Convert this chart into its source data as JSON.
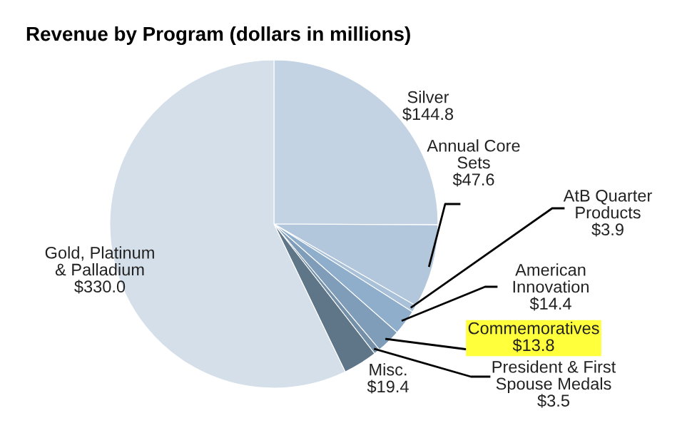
{
  "chart_data": {
    "type": "pie",
    "title": "Revenue by Program (dollars in millions)",
    "categories": [
      "Silver",
      "Annual Core Sets",
      "AtB Quarter Products",
      "American Innovation",
      "Commemoratives",
      "President & First Spouse Medals",
      "Misc.",
      "Gold, Platinum & Palladium"
    ],
    "values": [
      144.8,
      47.6,
      3.9,
      14.4,
      13.8,
      3.5,
      19.4,
      330.0
    ],
    "value_labels": [
      "$144.8",
      "$47.6",
      "$3.9",
      "$14.4",
      "$13.8",
      "$3.5",
      "$19.4",
      "$330.0"
    ],
    "colors": [
      "#c3d3e3",
      "#b3c7dc",
      "#a8c0d8",
      "#8eaecb",
      "#7f9db8",
      "#7390a8",
      "#5f7689",
      "#d5dfea"
    ],
    "legend": false
  }
}
